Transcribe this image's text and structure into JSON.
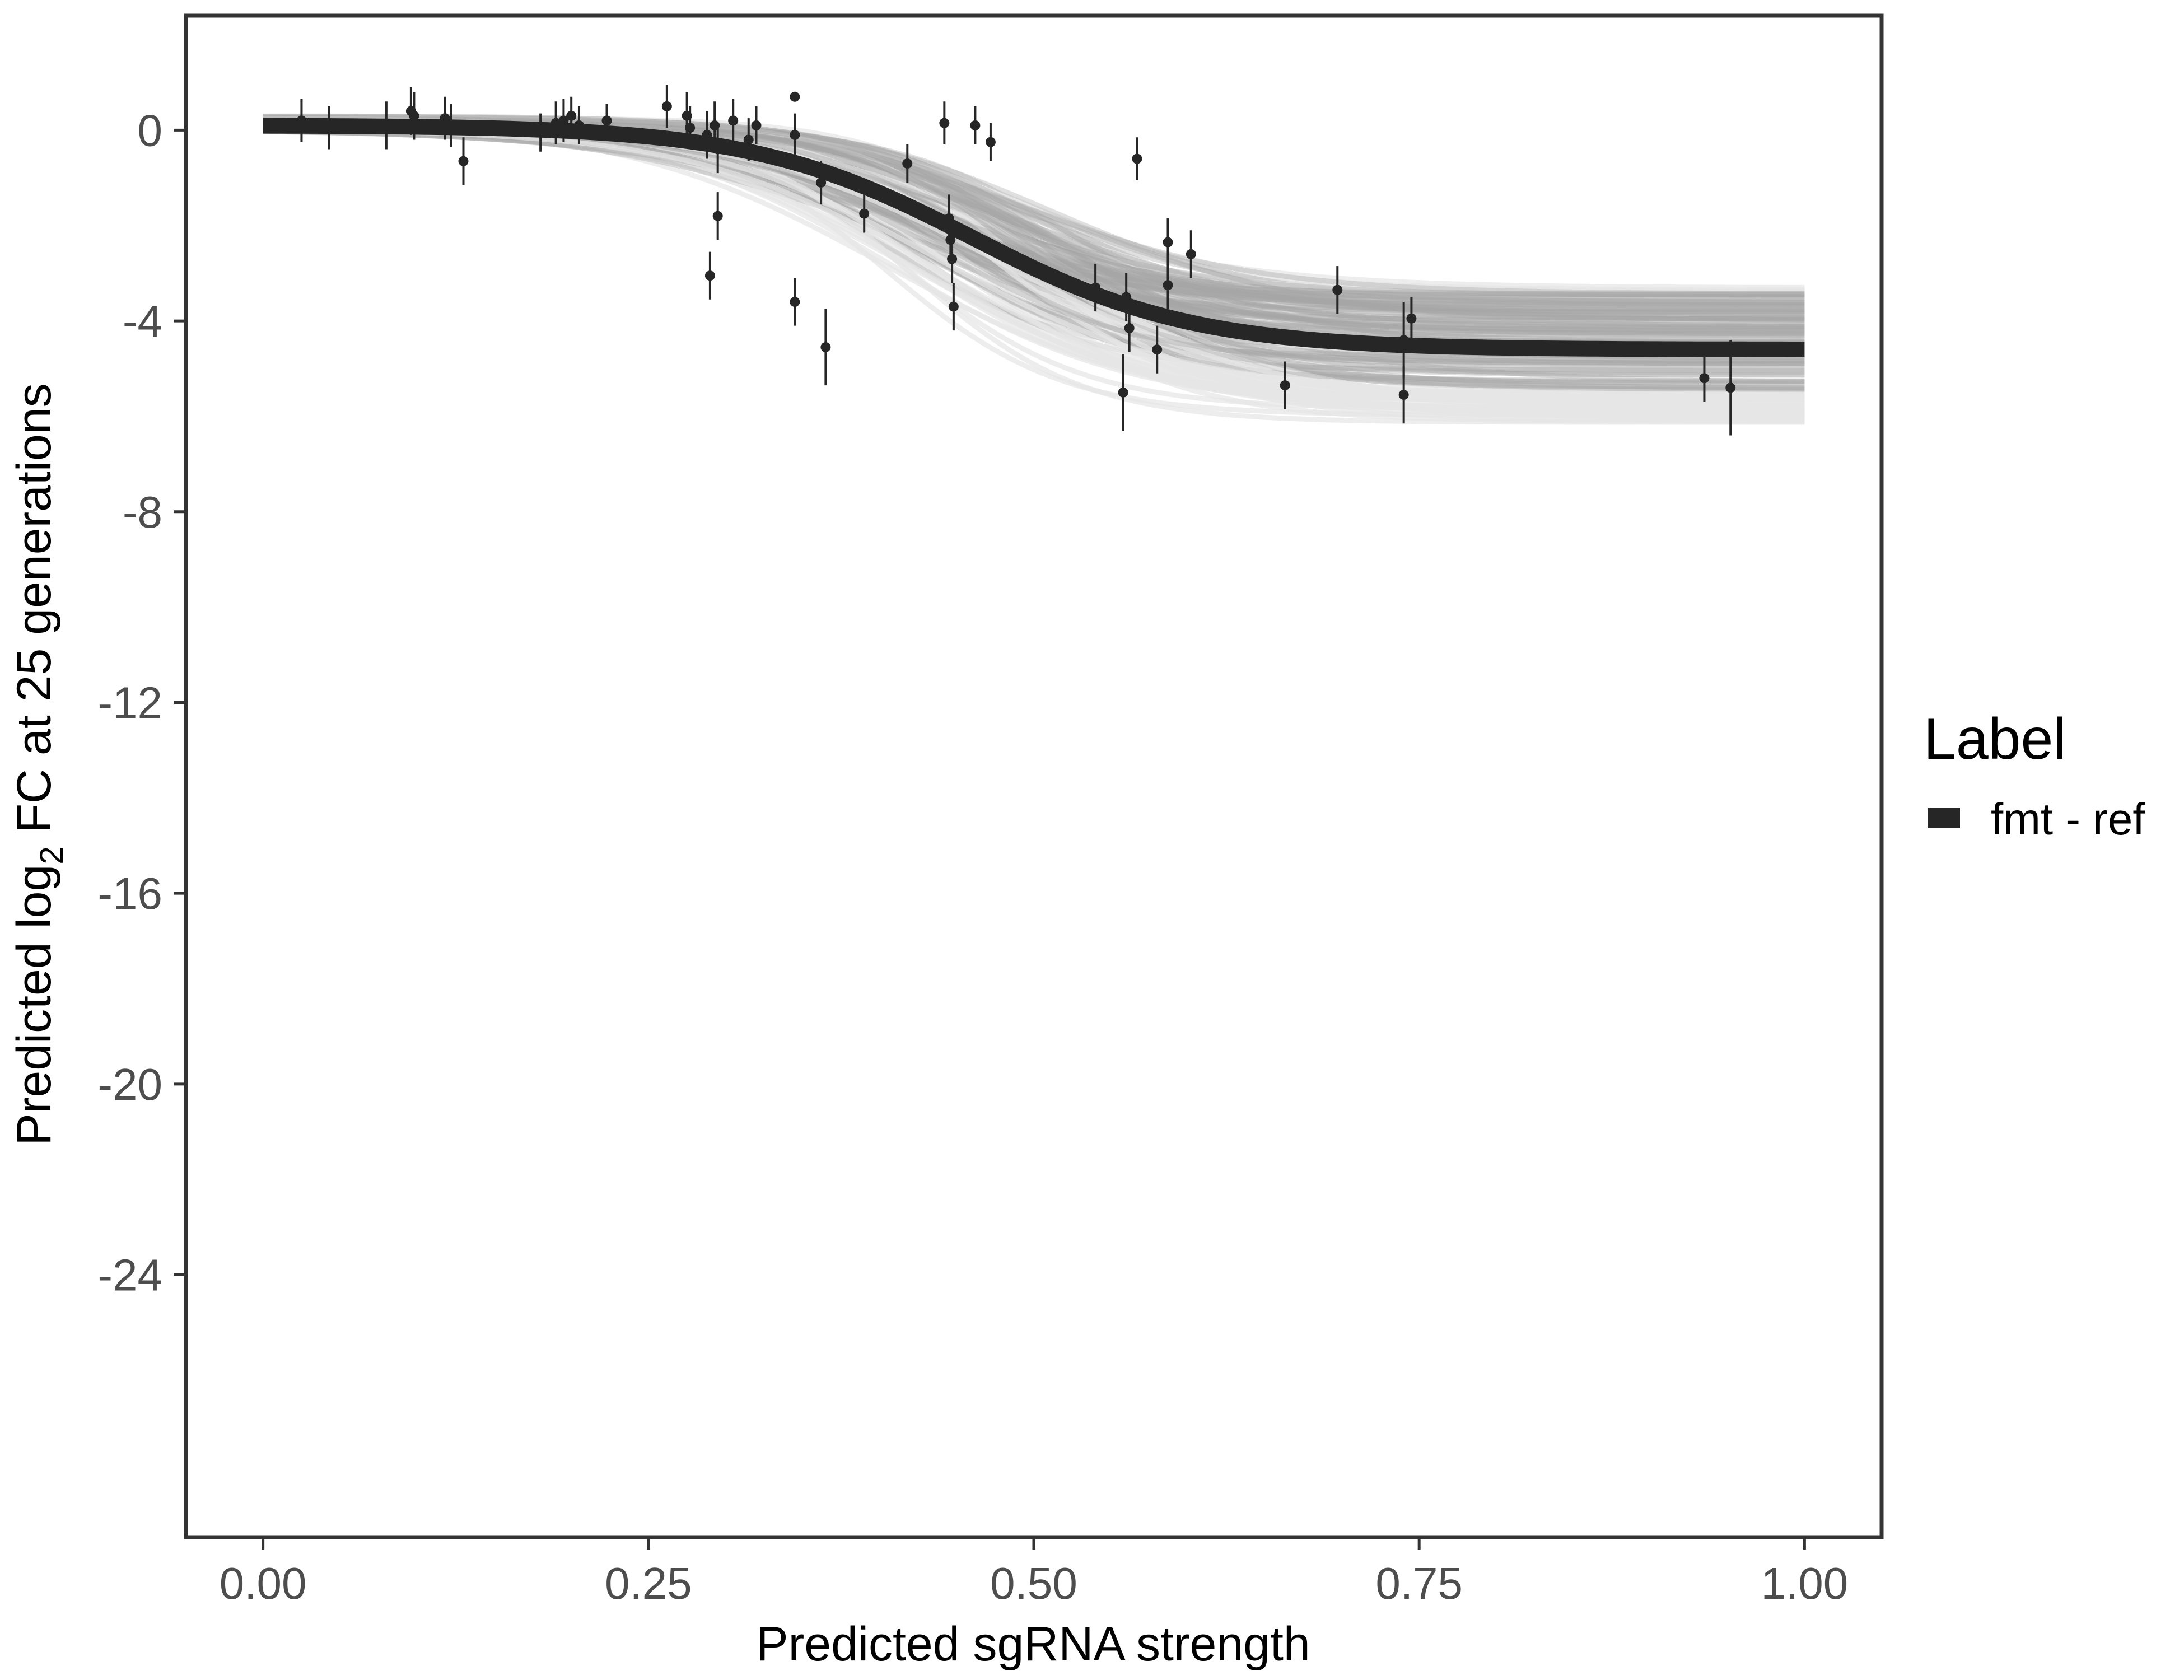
{
  "chart_data": {
    "type": "line",
    "title": "",
    "xlabel": "Predicted sgRNA strength",
    "ylabel_parts": {
      "prefix": "Predicted  log",
      "subscript": "2",
      "suffix": " FC at 25 generations"
    },
    "xlim": [
      -0.05,
      1.05
    ],
    "ylim": [
      -29.5,
      2.4
    ],
    "x_ticks": [
      0.0,
      0.25,
      0.5,
      0.75,
      1.0
    ],
    "x_tick_labels": [
      "0.00",
      "0.25",
      "0.50",
      "0.75",
      "1.00"
    ],
    "y_ticks": [
      0,
      -4,
      -8,
      -12,
      -16,
      -20,
      -24
    ],
    "y_tick_labels": [
      "0",
      "-4",
      "-8",
      "-12",
      "-16",
      "-20",
      "-24"
    ],
    "grid": false,
    "legend": {
      "title": "Label",
      "entries": [
        "fmt - ref"
      ],
      "placement": "right"
    },
    "colors": {
      "fit_line": "#262626",
      "band": "#a6a6a6",
      "band_light": "#e6e6e6",
      "points": "#262626",
      "panel_border": "#333333"
    },
    "fit_curve": {
      "name": "fmt - ref",
      "form": "y = upper + (lower - upper) / (1 + exp(-slope * (x - midpoint)))",
      "upper": 0.1,
      "lower": -4.6,
      "midpoint": 0.46,
      "slope": 14,
      "x_range": [
        0.0,
        1.0
      ],
      "band_upper_asymptotes": [
        0.0,
        0.3
      ],
      "band_lower_asymptotes": [
        -3.3,
        -6.2
      ]
    },
    "series": [
      {
        "name": "observations",
        "points": [
          {
            "x": 0.025,
            "y": 0.2,
            "err": 0.45
          },
          {
            "x": 0.043,
            "y": 0.05,
            "err": 0.45
          },
          {
            "x": 0.08,
            "y": 0.1,
            "err": 0.5
          },
          {
            "x": 0.096,
            "y": 0.4,
            "err": 0.5
          },
          {
            "x": 0.098,
            "y": 0.3,
            "err": 0.5
          },
          {
            "x": 0.118,
            "y": 0.25,
            "err": 0.45
          },
          {
            "x": 0.122,
            "y": 0.1,
            "err": 0.45
          },
          {
            "x": 0.13,
            "y": -0.65,
            "err": 0.5
          },
          {
            "x": 0.18,
            "y": -0.05,
            "err": 0.4
          },
          {
            "x": 0.19,
            "y": 0.15,
            "err": 0.45
          },
          {
            "x": 0.195,
            "y": 0.2,
            "err": 0.45
          },
          {
            "x": 0.2,
            "y": 0.3,
            "err": 0.4
          },
          {
            "x": 0.205,
            "y": 0.1,
            "err": 0.4
          },
          {
            "x": 0.223,
            "y": 0.2,
            "err": 0.35
          },
          {
            "x": 0.262,
            "y": 0.5,
            "err": 0.45
          },
          {
            "x": 0.275,
            "y": 0.3,
            "err": 0.5
          },
          {
            "x": 0.277,
            "y": 0.05,
            "err": 0.45
          },
          {
            "x": 0.288,
            "y": -0.1,
            "err": 0.5
          },
          {
            "x": 0.293,
            "y": 0.1,
            "err": 0.5
          },
          {
            "x": 0.295,
            "y": -0.4,
            "err": 0.5
          },
          {
            "x": 0.29,
            "y": -3.05,
            "err": 0.5
          },
          {
            "x": 0.295,
            "y": -1.8,
            "err": 0.5
          },
          {
            "x": 0.305,
            "y": 0.2,
            "err": 0.45
          },
          {
            "x": 0.315,
            "y": -0.2,
            "err": 0.45
          },
          {
            "x": 0.32,
            "y": 0.1,
            "err": 0.4
          },
          {
            "x": 0.345,
            "y": 0.7,
            "err": 0.05
          },
          {
            "x": 0.345,
            "y": -0.1,
            "err": 0.45
          },
          {
            "x": 0.345,
            "y": -3.6,
            "err": 0.5
          },
          {
            "x": 0.362,
            "y": -1.1,
            "err": 0.45
          },
          {
            "x": 0.365,
            "y": -4.55,
            "err": 0.8
          },
          {
            "x": 0.39,
            "y": -1.75,
            "err": 0.4
          },
          {
            "x": 0.418,
            "y": -0.7,
            "err": 0.4
          },
          {
            "x": 0.442,
            "y": 0.15,
            "err": 0.45
          },
          {
            "x": 0.445,
            "y": -1.85,
            "err": 0.5
          },
          {
            "x": 0.446,
            "y": -2.3,
            "err": 0.5
          },
          {
            "x": 0.447,
            "y": -2.7,
            "err": 0.5
          },
          {
            "x": 0.448,
            "y": -3.7,
            "err": 0.5
          },
          {
            "x": 0.462,
            "y": 0.1,
            "err": 0.4
          },
          {
            "x": 0.472,
            "y": -0.25,
            "err": 0.4
          },
          {
            "x": 0.54,
            "y": -3.3,
            "err": 0.5
          },
          {
            "x": 0.56,
            "y": -3.5,
            "err": 0.5
          },
          {
            "x": 0.558,
            "y": -5.5,
            "err": 0.8
          },
          {
            "x": 0.562,
            "y": -4.15,
            "err": 0.5
          },
          {
            "x": 0.567,
            "y": -0.6,
            "err": 0.45
          },
          {
            "x": 0.58,
            "y": -4.6,
            "err": 0.5
          },
          {
            "x": 0.587,
            "y": -2.35,
            "err": 0.5
          },
          {
            "x": 0.587,
            "y": -3.25,
            "err": 0.5
          },
          {
            "x": 0.602,
            "y": -2.6,
            "err": 0.5
          },
          {
            "x": 0.663,
            "y": -5.35,
            "err": 0.5
          },
          {
            "x": 0.697,
            "y": -3.35,
            "err": 0.5
          },
          {
            "x": 0.74,
            "y": -4.4,
            "err": 0.8
          },
          {
            "x": 0.74,
            "y": -5.55,
            "err": 0.6
          },
          {
            "x": 0.745,
            "y": -3.95,
            "err": 0.45
          },
          {
            "x": 0.935,
            "y": -5.2,
            "err": 0.5
          },
          {
            "x": 0.952,
            "y": -5.4,
            "err": 1.0
          }
        ]
      }
    ]
  }
}
